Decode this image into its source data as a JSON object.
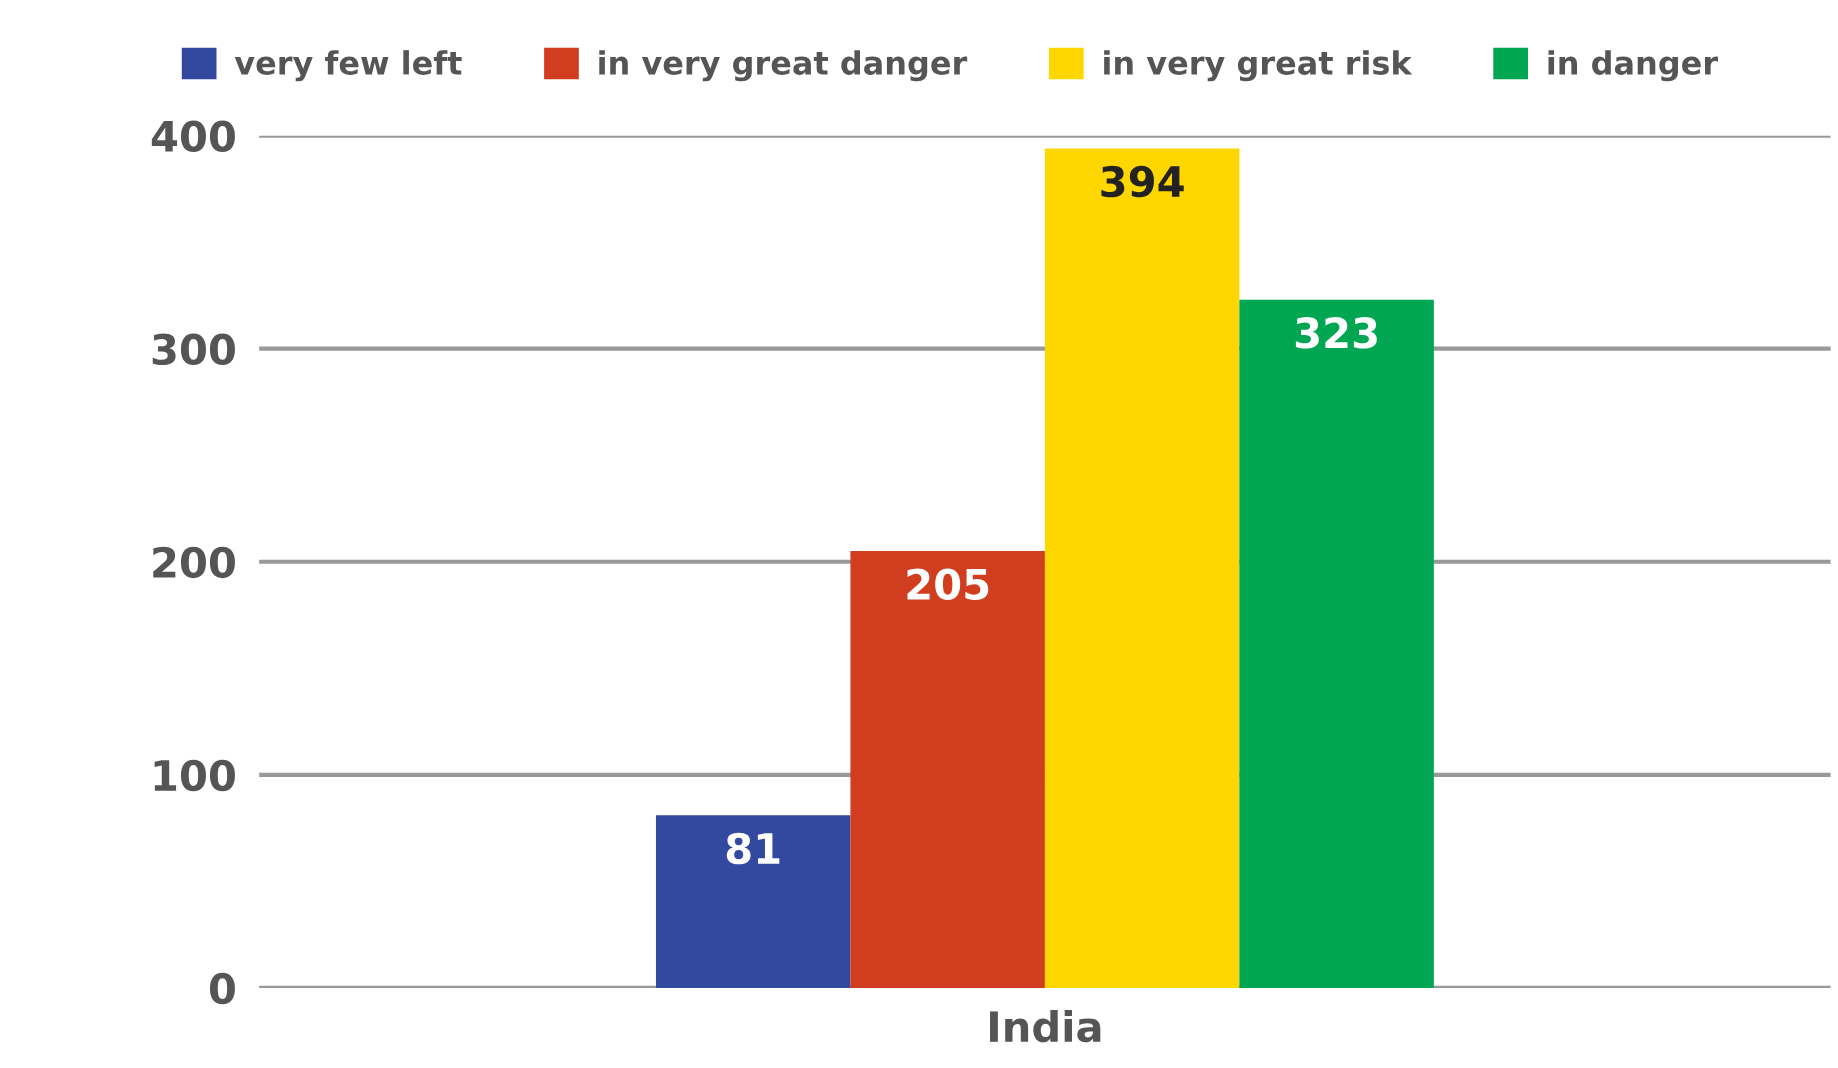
{
  "chart_data": {
    "type": "bar",
    "categories": [
      "India"
    ],
    "series": [
      {
        "name": "very few left",
        "color": "#3349a0",
        "values": [
          81
        ]
      },
      {
        "name": "in very great danger",
        "color": "#d13d1f",
        "values": [
          205
        ]
      },
      {
        "name": "in very great risk",
        "color": "#ffd700",
        "values": [
          394
        ]
      },
      {
        "name": "in danger",
        "color": "#00a651",
        "values": [
          323
        ]
      }
    ],
    "ylim": [
      0,
      400
    ],
    "yticks": [
      0,
      100,
      200,
      300,
      400
    ],
    "grid": "y",
    "legend": "top",
    "data_labels": true
  }
}
